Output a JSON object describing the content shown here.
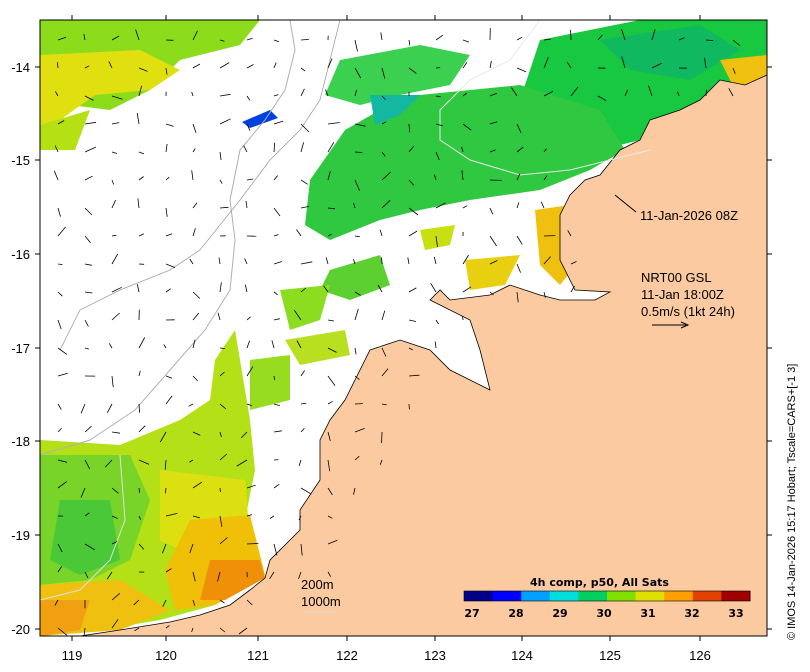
{
  "map": {
    "x_ticks": [
      "119",
      "120",
      "121",
      "122",
      "123",
      "124",
      "125",
      "126"
    ],
    "y_ticks": [
      "-14",
      "-15",
      "-16",
      "-17",
      "-18",
      "-19",
      "-20"
    ],
    "land_color": "#fccaa0",
    "no_data_color": "#ffffff"
  },
  "annotations": {
    "sst_timestamp": "11-Jan-2026 08Z",
    "current_source": "NRT00 GSL",
    "current_time": "11-Jan 18:00Z",
    "current_scale": "0.5m/s (1kt 24h)",
    "isobath_1": "200m",
    "isobath_2": "1000m"
  },
  "colorbar": {
    "title": "4h comp, p50, All Sats",
    "labels": [
      "27",
      "28",
      "29",
      "30",
      "31",
      "32",
      "33"
    ],
    "colors": [
      "#00008b",
      "#0000ff",
      "#00a0ff",
      "#00dddd",
      "#00d060",
      "#80e000",
      "#e0e000",
      "#ffa000",
      "#e04000",
      "#a00000"
    ]
  },
  "credit": "© IMOS 14-Jan-2026 15:17 Hobart; Tscale=CARS+[-1 3]"
}
